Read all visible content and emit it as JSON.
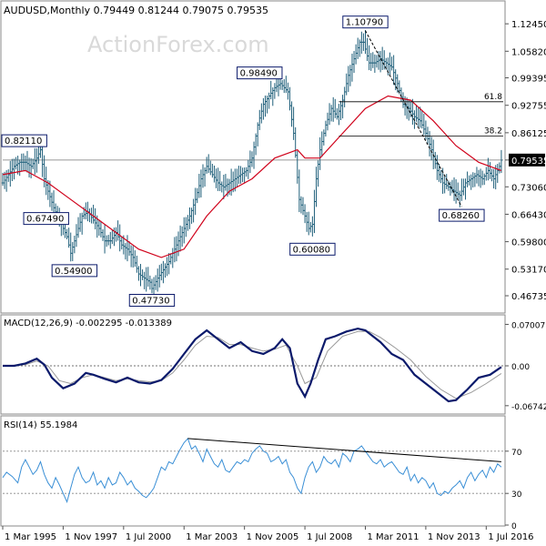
{
  "chart_data": {
    "type": "line",
    "title": "AUDUSD,Monthly  0.79449 0.81244 0.79075 0.79535",
    "watermark": "ActionForex.com",
    "x_labels": [
      "1 Mar 1995",
      "1 Nov 1997",
      "1 Jul 2000",
      "1 Mar 2003",
      "1 Nov 2005",
      "1 Jul 2008",
      "1 Mar 2011",
      "1 Nov 2013",
      "1 Jul 2016"
    ],
    "x_label_months": [
      0,
      32,
      64,
      96,
      128,
      160,
      192,
      224,
      256
    ],
    "price_panel": {
      "ylim": [
        0.43,
        1.16
      ],
      "y_ticks": [
        "1.12450",
        "1.05820",
        "0.99395",
        "0.92755",
        "0.86125",
        "0.79535",
        "0.73060",
        "0.66430",
        "0.59800",
        "0.53170",
        "0.46735"
      ],
      "current_price": "0.79535",
      "annotations": [
        {
          "label": "0.82110",
          "month": 0,
          "value": 0.8211
        },
        {
          "label": "0.67490",
          "month": 23,
          "value": 0.6749
        },
        {
          "label": "0.54900",
          "month": 38,
          "value": 0.549
        },
        {
          "label": "0.47730",
          "month": 79,
          "value": 0.4773
        },
        {
          "label": "0.98490",
          "month": 136,
          "value": 0.9849
        },
        {
          "label": "0.60080",
          "month": 164,
          "value": 0.6008
        },
        {
          "label": "1.10790",
          "month": 192,
          "value": 1.1079
        },
        {
          "label": "0.68260",
          "month": 243,
          "value": 0.6826
        }
      ],
      "fib_levels": [
        {
          "label": "61.8",
          "value": 0.9361
        },
        {
          "label": "38.2",
          "value": 0.8532
        }
      ],
      "trendline": {
        "from_month": 192,
        "from_value": 1.1079,
        "to_month": 243,
        "to_value": 0.6826
      },
      "close_path": [
        [
          0,
          0.74
        ],
        [
          3,
          0.76
        ],
        [
          6,
          0.78
        ],
        [
          9,
          0.79
        ],
        [
          12,
          0.79
        ],
        [
          15,
          0.78
        ],
        [
          18,
          0.8
        ],
        [
          20,
          0.82
        ],
        [
          22,
          0.75
        ],
        [
          24,
          0.72
        ],
        [
          27,
          0.68
        ],
        [
          29,
          0.66
        ],
        [
          32,
          0.63
        ],
        [
          34,
          0.61
        ],
        [
          36,
          0.57
        ],
        [
          38,
          0.6
        ],
        [
          42,
          0.66
        ],
        [
          45,
          0.67
        ],
        [
          48,
          0.65
        ],
        [
          51,
          0.63
        ],
        [
          54,
          0.6
        ],
        [
          57,
          0.6
        ],
        [
          60,
          0.62
        ],
        [
          63,
          0.59
        ],
        [
          66,
          0.58
        ],
        [
          69,
          0.56
        ],
        [
          72,
          0.52
        ],
        [
          75,
          0.51
        ],
        [
          78,
          0.5
        ],
        [
          79,
          0.485
        ],
        [
          82,
          0.51
        ],
        [
          85,
          0.53
        ],
        [
          88,
          0.55
        ],
        [
          90,
          0.57
        ],
        [
          93,
          0.6
        ],
        [
          96,
          0.63
        ],
        [
          99,
          0.66
        ],
        [
          102,
          0.7
        ],
        [
          105,
          0.75
        ],
        [
          108,
          0.78
        ],
        [
          111,
          0.76
        ],
        [
          114,
          0.74
        ],
        [
          117,
          0.73
        ],
        [
          120,
          0.74
        ],
        [
          123,
          0.75
        ],
        [
          126,
          0.76
        ],
        [
          129,
          0.77
        ],
        [
          132,
          0.8
        ],
        [
          135,
          0.88
        ],
        [
          138,
          0.93
        ],
        [
          141,
          0.95
        ],
        [
          144,
          0.97
        ],
        [
          147,
          0.98
        ],
        [
          151,
          0.96
        ],
        [
          154,
          0.86
        ],
        [
          157,
          0.7
        ],
        [
          160,
          0.66
        ],
        [
          162,
          0.63
        ],
        [
          164,
          0.64
        ],
        [
          166,
          0.75
        ],
        [
          168,
          0.82
        ],
        [
          171,
          0.88
        ],
        [
          174,
          0.92
        ],
        [
          177,
          0.9
        ],
        [
          180,
          0.94
        ],
        [
          183,
          1.0
        ],
        [
          186,
          1.04
        ],
        [
          189,
          1.08
        ],
        [
          191,
          1.08
        ],
        [
          194,
          1.03
        ],
        [
          197,
          1.03
        ],
        [
          200,
          1.04
        ],
        [
          203,
          1.03
        ],
        [
          206,
          1.02
        ],
        [
          209,
          0.98
        ],
        [
          212,
          0.93
        ],
        [
          215,
          0.92
        ],
        [
          218,
          0.9
        ],
        [
          221,
          0.89
        ],
        [
          224,
          0.86
        ],
        [
          227,
          0.82
        ],
        [
          230,
          0.77
        ],
        [
          233,
          0.74
        ],
        [
          236,
          0.73
        ],
        [
          239,
          0.72
        ],
        [
          242,
          0.71
        ],
        [
          245,
          0.74
        ],
        [
          248,
          0.75
        ],
        [
          251,
          0.76
        ],
        [
          254,
          0.75
        ],
        [
          257,
          0.77
        ],
        [
          260,
          0.75
        ],
        [
          263,
          0.78
        ],
        [
          264,
          0.795
        ]
      ],
      "ma_path": [
        [
          0,
          0.76
        ],
        [
          12,
          0.77
        ],
        [
          24,
          0.74
        ],
        [
          36,
          0.7
        ],
        [
          48,
          0.66
        ],
        [
          60,
          0.62
        ],
        [
          72,
          0.58
        ],
        [
          84,
          0.56
        ],
        [
          96,
          0.58
        ],
        [
          108,
          0.66
        ],
        [
          120,
          0.72
        ],
        [
          132,
          0.75
        ],
        [
          144,
          0.8
        ],
        [
          156,
          0.82
        ],
        [
          160,
          0.8
        ],
        [
          168,
          0.8
        ],
        [
          180,
          0.86
        ],
        [
          192,
          0.92
        ],
        [
          204,
          0.95
        ],
        [
          216,
          0.94
        ],
        [
          228,
          0.89
        ],
        [
          240,
          0.83
        ],
        [
          252,
          0.79
        ],
        [
          264,
          0.77
        ]
      ]
    },
    "macd_panel": {
      "label": "MACD(12,26,9) -0.002295 -0.013389",
      "ylim": [
        -0.08,
        0.08
      ],
      "y_ticks": [
        "0.070071",
        "0.00",
        "-0.067423"
      ],
      "macd_path": [
        [
          0,
          0.0
        ],
        [
          6,
          0.0
        ],
        [
          12,
          0.004
        ],
        [
          18,
          0.012
        ],
        [
          22,
          0.002
        ],
        [
          26,
          -0.02
        ],
        [
          32,
          -0.038
        ],
        [
          38,
          -0.03
        ],
        [
          44,
          -0.012
        ],
        [
          48,
          -0.015
        ],
        [
          54,
          -0.022
        ],
        [
          60,
          -0.028
        ],
        [
          66,
          -0.02
        ],
        [
          72,
          -0.028
        ],
        [
          78,
          -0.03
        ],
        [
          84,
          -0.024
        ],
        [
          90,
          -0.005
        ],
        [
          96,
          0.02
        ],
        [
          102,
          0.045
        ],
        [
          108,
          0.06
        ],
        [
          114,
          0.045
        ],
        [
          120,
          0.03
        ],
        [
          126,
          0.04
        ],
        [
          132,
          0.025
        ],
        [
          138,
          0.02
        ],
        [
          144,
          0.03
        ],
        [
          148,
          0.045
        ],
        [
          152,
          0.03
        ],
        [
          156,
          -0.03
        ],
        [
          160,
          -0.052
        ],
        [
          163,
          -0.03
        ],
        [
          167,
          0.01
        ],
        [
          171,
          0.045
        ],
        [
          176,
          0.05
        ],
        [
          182,
          0.058
        ],
        [
          188,
          0.063
        ],
        [
          192,
          0.06
        ],
        [
          196,
          0.05
        ],
        [
          200,
          0.04
        ],
        [
          206,
          0.02
        ],
        [
          212,
          0.01
        ],
        [
          218,
          -0.015
        ],
        [
          224,
          -0.03
        ],
        [
          230,
          -0.045
        ],
        [
          236,
          -0.06
        ],
        [
          240,
          -0.058
        ],
        [
          246,
          -0.04
        ],
        [
          252,
          -0.02
        ],
        [
          258,
          -0.015
        ],
        [
          264,
          -0.002
        ]
      ],
      "signal_path": [
        [
          0,
          0.0
        ],
        [
          12,
          0.002
        ],
        [
          18,
          0.008
        ],
        [
          24,
          0.0
        ],
        [
          30,
          -0.025
        ],
        [
          36,
          -0.03
        ],
        [
          42,
          -0.02
        ],
        [
          48,
          -0.015
        ],
        [
          54,
          -0.02
        ],
        [
          60,
          -0.025
        ],
        [
          66,
          -0.022
        ],
        [
          72,
          -0.025
        ],
        [
          78,
          -0.027
        ],
        [
          84,
          -0.025
        ],
        [
          90,
          -0.012
        ],
        [
          96,
          0.01
        ],
        [
          102,
          0.035
        ],
        [
          108,
          0.05
        ],
        [
          114,
          0.048
        ],
        [
          120,
          0.036
        ],
        [
          126,
          0.036
        ],
        [
          132,
          0.03
        ],
        [
          138,
          0.025
        ],
        [
          144,
          0.028
        ],
        [
          150,
          0.035
        ],
        [
          156,
          0.0
        ],
        [
          160,
          -0.03
        ],
        [
          166,
          -0.02
        ],
        [
          172,
          0.025
        ],
        [
          180,
          0.05
        ],
        [
          188,
          0.058
        ],
        [
          194,
          0.058
        ],
        [
          200,
          0.048
        ],
        [
          208,
          0.03
        ],
        [
          216,
          0.01
        ],
        [
          224,
          -0.018
        ],
        [
          232,
          -0.04
        ],
        [
          240,
          -0.055
        ],
        [
          248,
          -0.045
        ],
        [
          256,
          -0.03
        ],
        [
          264,
          -0.013
        ]
      ]
    },
    "rsi_panel": {
      "label": "RSI(14) 55.1984",
      "ylim": [
        0,
        100
      ],
      "y_ticks": [
        "70",
        "30",
        "0"
      ],
      "y_tick_values": [
        70,
        30,
        0
      ],
      "trendline": {
        "from_month": 98,
        "from_value": 82,
        "to_month": 264,
        "to_value": 60
      },
      "rsi_path": [
        [
          0,
          45
        ],
        [
          2,
          50
        ],
        [
          5,
          46
        ],
        [
          8,
          40
        ],
        [
          10,
          55
        ],
        [
          12,
          62
        ],
        [
          14,
          55
        ],
        [
          16,
          48
        ],
        [
          18,
          52
        ],
        [
          20,
          60
        ],
        [
          22,
          48
        ],
        [
          24,
          40
        ],
        [
          26,
          35
        ],
        [
          28,
          45
        ],
        [
          30,
          38
        ],
        [
          32,
          30
        ],
        [
          34,
          22
        ],
        [
          36,
          35
        ],
        [
          38,
          48
        ],
        [
          40,
          55
        ],
        [
          42,
          45
        ],
        [
          44,
          40
        ],
        [
          46,
          42
        ],
        [
          48,
          50
        ],
        [
          50,
          38
        ],
        [
          52,
          42
        ],
        [
          54,
          35
        ],
        [
          56,
          45
        ],
        [
          58,
          38
        ],
        [
          60,
          40
        ],
        [
          62,
          50
        ],
        [
          64,
          45
        ],
        [
          66,
          38
        ],
        [
          68,
          42
        ],
        [
          70,
          35
        ],
        [
          72,
          32
        ],
        [
          74,
          28
        ],
        [
          76,
          26
        ],
        [
          78,
          30
        ],
        [
          80,
          35
        ],
        [
          82,
          45
        ],
        [
          84,
          55
        ],
        [
          86,
          52
        ],
        [
          88,
          60
        ],
        [
          90,
          58
        ],
        [
          92,
          65
        ],
        [
          94,
          72
        ],
        [
          96,
          78
        ],
        [
          98,
          82
        ],
        [
          100,
          72
        ],
        [
          102,
          75
        ],
        [
          104,
          68
        ],
        [
          106,
          60
        ],
        [
          108,
          72
        ],
        [
          110,
          65
        ],
        [
          112,
          58
        ],
        [
          114,
          55
        ],
        [
          116,
          62
        ],
        [
          118,
          52
        ],
        [
          120,
          50
        ],
        [
          122,
          55
        ],
        [
          124,
          60
        ],
        [
          126,
          58
        ],
        [
          128,
          62
        ],
        [
          130,
          60
        ],
        [
          132,
          68
        ],
        [
          134,
          72
        ],
        [
          136,
          75
        ],
        [
          138,
          70
        ],
        [
          140,
          68
        ],
        [
          142,
          60
        ],
        [
          144,
          62
        ],
        [
          146,
          65
        ],
        [
          148,
          58
        ],
        [
          150,
          62
        ],
        [
          152,
          50
        ],
        [
          154,
          45
        ],
        [
          156,
          35
        ],
        [
          158,
          30
        ],
        [
          160,
          45
        ],
        [
          162,
          55
        ],
        [
          164,
          60
        ],
        [
          166,
          50
        ],
        [
          168,
          55
        ],
        [
          170,
          65
        ],
        [
          172,
          60
        ],
        [
          174,
          58
        ],
        [
          176,
          62
        ],
        [
          178,
          55
        ],
        [
          180,
          68
        ],
        [
          182,
          65
        ],
        [
          184,
          60
        ],
        [
          186,
          70
        ],
        [
          188,
          72
        ],
        [
          190,
          75
        ],
        [
          192,
          70
        ],
        [
          194,
          65
        ],
        [
          196,
          60
        ],
        [
          198,
          58
        ],
        [
          200,
          62
        ],
        [
          202,
          55
        ],
        [
          204,
          58
        ],
        [
          206,
          60
        ],
        [
          208,
          55
        ],
        [
          210,
          50
        ],
        [
          212,
          48
        ],
        [
          214,
          55
        ],
        [
          216,
          42
        ],
        [
          218,
          48
        ],
        [
          220,
          40
        ],
        [
          222,
          45
        ],
        [
          224,
          42
        ],
        [
          226,
          35
        ],
        [
          228,
          40
        ],
        [
          230,
          30
        ],
        [
          232,
          28
        ],
        [
          234,
          32
        ],
        [
          236,
          30
        ],
        [
          238,
          35
        ],
        [
          240,
          38
        ],
        [
          242,
          42
        ],
        [
          244,
          35
        ],
        [
          246,
          45
        ],
        [
          248,
          50
        ],
        [
          250,
          42
        ],
        [
          252,
          48
        ],
        [
          254,
          52
        ],
        [
          256,
          45
        ],
        [
          258,
          55
        ],
        [
          260,
          50
        ],
        [
          262,
          58
        ],
        [
          264,
          55
        ]
      ]
    },
    "colors": {
      "price_bars": "#1f5f7a",
      "ma": "#d0021b",
      "macd": "#0b1a6b",
      "signal": "#9a9a9a",
      "rsi": "#3a8fd6",
      "grid": "#8a8a8a",
      "trend": "#000000",
      "label_border": "#0b1a6b"
    }
  }
}
